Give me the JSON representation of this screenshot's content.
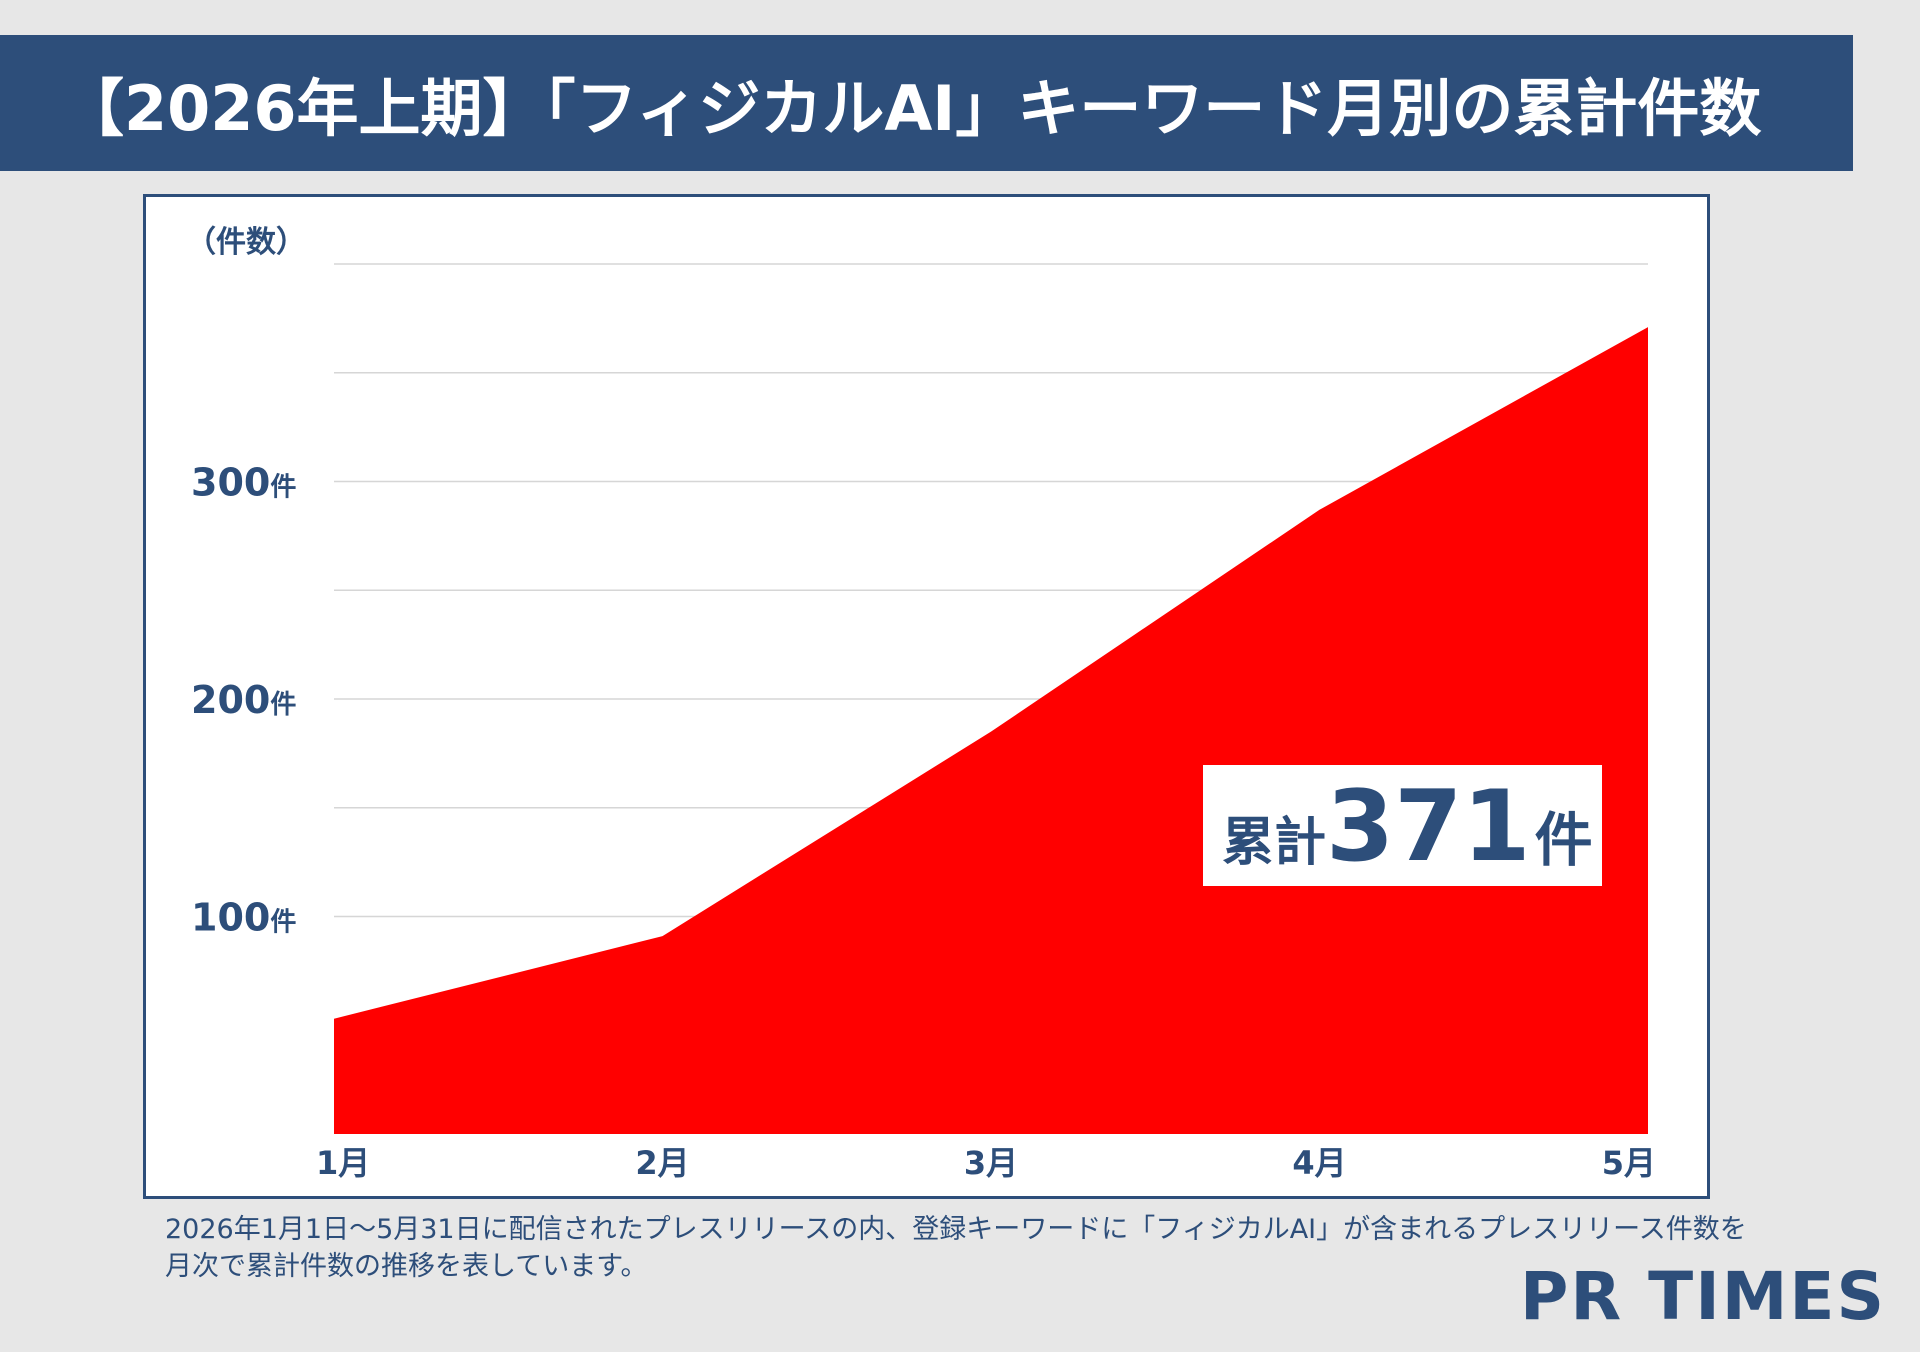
{
  "header": {
    "title": "【2026年上期】「フィジカルAI」キーワード月別の累計件数"
  },
  "chart_data": {
    "type": "area",
    "categories": [
      "1月",
      "2月",
      "3月",
      "4月",
      "5月"
    ],
    "series": [
      {
        "values": [
          53,
          91,
          185,
          287,
          371
        ],
        "color": "#ff0000"
      }
    ],
    "ylabel": "（件数）",
    "ylim": [
      0,
      400
    ],
    "y_ticks": [
      {
        "value": 100,
        "label": "100件"
      },
      {
        "value": 200,
        "label": "200件"
      },
      {
        "value": 300,
        "label": "300件"
      }
    ],
    "grid": true,
    "grid_step": 50,
    "annotation": {
      "prefix": "累計",
      "value": "371",
      "suffix": "件"
    }
  },
  "caption": {
    "line1": "2026年1月1日～5月31日に配信されたプレスリリースの内、登録キーワードに「フィジカルAI」が含まれるプレスリリース件数を",
    "line2": "月次で累計件数の推移を表しています。"
  },
  "logo": {
    "text": "PR TIMES"
  },
  "colors": {
    "navy": "#2d4e7a",
    "area": "#ff0000",
    "background": "#e7e7e7"
  }
}
